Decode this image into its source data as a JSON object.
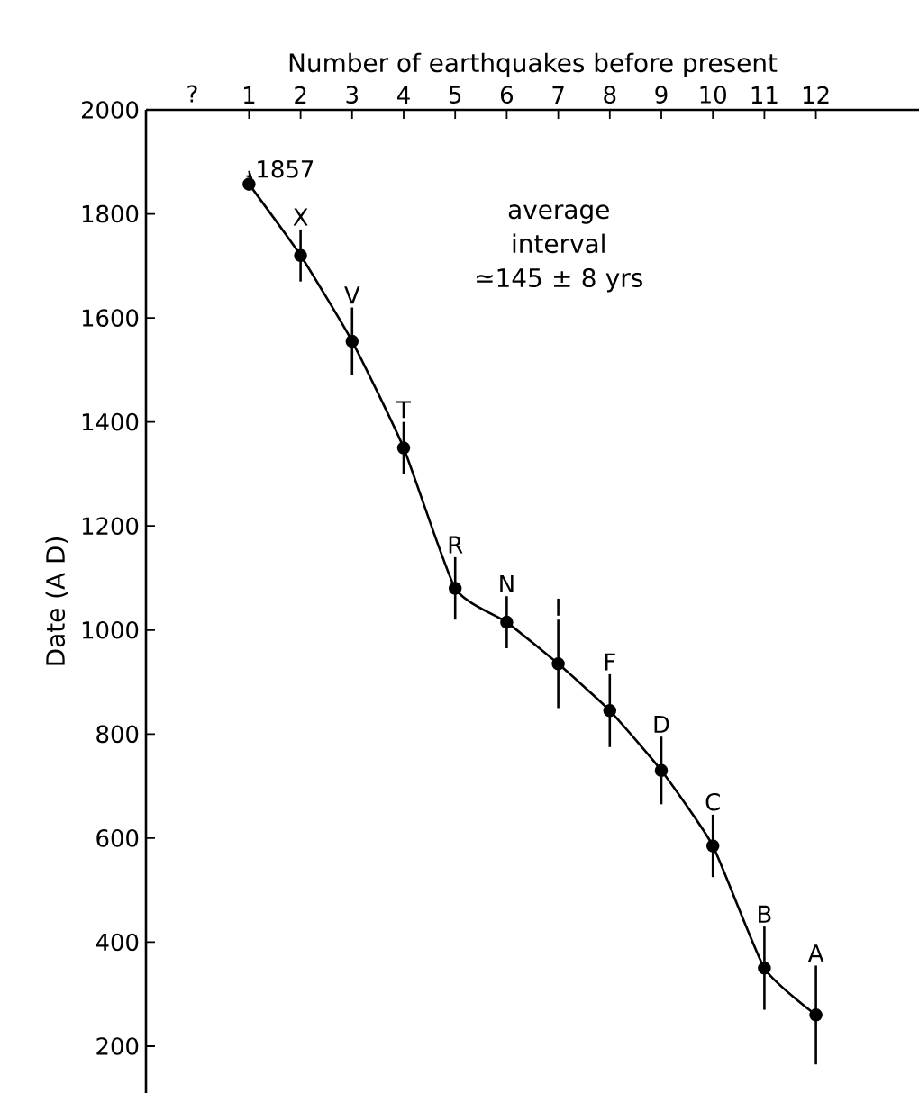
{
  "chart_data": {
    "type": "line",
    "xlabel": "Number of earthquakes before present",
    "ylabel": "Date (A D)",
    "x": [
      1,
      2,
      3,
      4,
      5,
      6,
      7,
      8,
      9,
      10,
      11,
      12
    ],
    "values": [
      1857,
      1720,
      1555,
      1350,
      1080,
      1015,
      935,
      845,
      730,
      585,
      350,
      260
    ],
    "errors": [
      null,
      50,
      65,
      50,
      60,
      50,
      85,
      70,
      65,
      60,
      80,
      95
    ],
    "color": "#000000",
    "marker": "circle",
    "line_style": "solid",
    "xlim": [
      -1,
      14
    ],
    "xticks": [
      1,
      2,
      3,
      4,
      5,
      6,
      7,
      8,
      9,
      10,
      11,
      12
    ],
    "ylim": [
      110,
      2000
    ],
    "yticks": [
      200,
      400,
      600,
      800,
      1000,
      1200,
      1400,
      1600,
      1800,
      2000
    ],
    "grid": false,
    "annotations": [
      "?",
      "average interval ≃145 ± 8 yrs",
      {
        "text": "1857",
        "x": 1,
        "y": 1857
      },
      {
        "text": "X",
        "x": 2,
        "y": 1720
      },
      {
        "text": "V",
        "x": 3,
        "y": 1555
      },
      {
        "text": "T",
        "x": 4,
        "y": 1350
      },
      {
        "text": "R",
        "x": 5,
        "y": 1080
      },
      {
        "text": "N",
        "x": 6,
        "y": 1015
      },
      {
        "text": "I",
        "x": 7,
        "y": 935
      },
      {
        "text": "F",
        "x": 8,
        "y": 845
      },
      {
        "text": "D",
        "x": 9,
        "y": 730
      },
      {
        "text": "C",
        "x": 10,
        "y": 585
      },
      {
        "text": "B",
        "x": 11,
        "y": 350
      },
      {
        "text": "A",
        "x": 12,
        "y": 260
      }
    ]
  }
}
